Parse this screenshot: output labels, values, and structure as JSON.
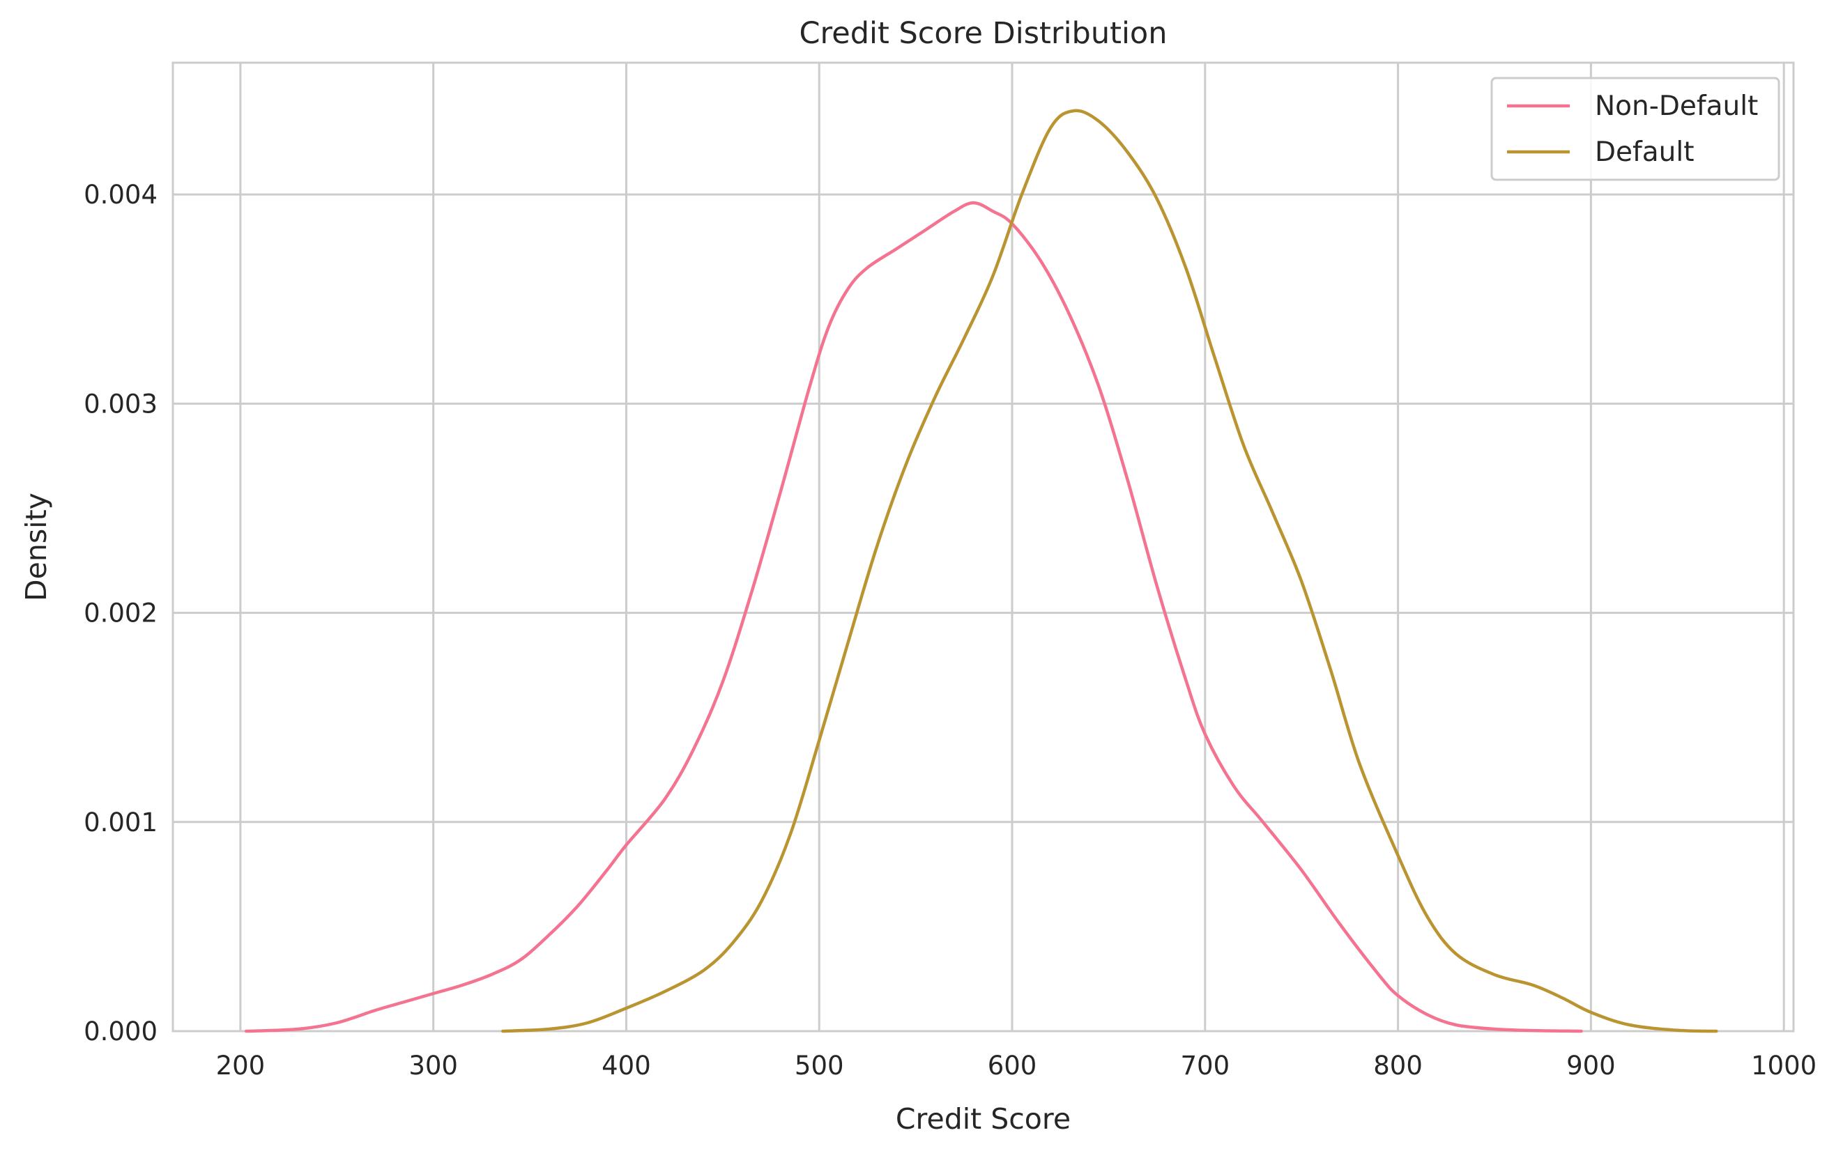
{
  "chart_data": {
    "type": "line",
    "title": "Credit Score Distribution",
    "xlabel": "Credit Score",
    "ylabel": "Density",
    "xlim": [
      165,
      1005
    ],
    "ylim": [
      0,
      0.00463
    ],
    "xticks": [
      200,
      300,
      400,
      500,
      600,
      700,
      800,
      900,
      1000
    ],
    "xtick_labels": [
      "200",
      "300",
      "400",
      "500",
      "600",
      "700",
      "800",
      "900",
      "1000"
    ],
    "yticks": [
      0,
      0.001,
      0.002,
      0.003,
      0.004
    ],
    "ytick_labels": [
      "0.000",
      "0.001",
      "0.002",
      "0.003",
      "0.004"
    ],
    "grid": true,
    "legend_position": "top-right",
    "series": [
      {
        "name": "Non-Default",
        "color": "#f37390",
        "x": [
          203,
          230,
          250,
          270,
          285,
          300,
          315,
          330,
          345,
          360,
          375,
          390,
          400,
          420,
          435,
          450,
          465,
          480,
          495,
          505,
          515,
          525,
          540,
          555,
          570,
          580,
          590,
          600,
          615,
          630,
          645,
          660,
          675,
          690,
          700,
          715,
          730,
          750,
          770,
          790,
          800,
          815,
          830,
          850,
          870,
          895
        ],
        "y": [
          0.0,
          1e-05,
          4e-05,
          0.0001,
          0.00014,
          0.00018,
          0.00022,
          0.00027,
          0.00034,
          0.00046,
          0.0006,
          0.00077,
          0.00089,
          0.00111,
          0.00135,
          0.00167,
          0.0021,
          0.00258,
          0.00308,
          0.00337,
          0.00355,
          0.00365,
          0.00374,
          0.00383,
          0.00392,
          0.00396,
          0.00392,
          0.00386,
          0.00368,
          0.00342,
          0.00308,
          0.00263,
          0.00213,
          0.00168,
          0.00142,
          0.00117,
          0.001,
          0.00077,
          0.00051,
          0.00027,
          0.00017,
          8e-05,
          3e-05,
          1e-05,
          3e-06,
          0.0
        ]
      },
      {
        "name": "Default",
        "color": "#ba9430",
        "x": [
          336,
          360,
          380,
          400,
          420,
          440,
          455,
          470,
          485,
          500,
          515,
          530,
          545,
          560,
          575,
          590,
          605,
          620,
          632,
          645,
          660,
          675,
          690,
          705,
          720,
          735,
          750,
          765,
          780,
          800,
          815,
          830,
          850,
          870,
          885,
          900,
          920,
          945,
          965
        ],
        "y": [
          0.0,
          1e-05,
          4e-05,
          0.00011,
          0.00019,
          0.00029,
          0.00042,
          0.00062,
          0.00094,
          0.00139,
          0.00186,
          0.00232,
          0.00271,
          0.00303,
          0.00331,
          0.00361,
          0.004,
          0.00432,
          0.0044,
          0.00435,
          0.0042,
          0.00398,
          0.00365,
          0.00322,
          0.0028,
          0.00248,
          0.00215,
          0.00173,
          0.00128,
          0.00084,
          0.00055,
          0.00037,
          0.00027,
          0.00022,
          0.00016,
          9e-05,
          3e-05,
          4e-06,
          0.0
        ]
      }
    ]
  }
}
